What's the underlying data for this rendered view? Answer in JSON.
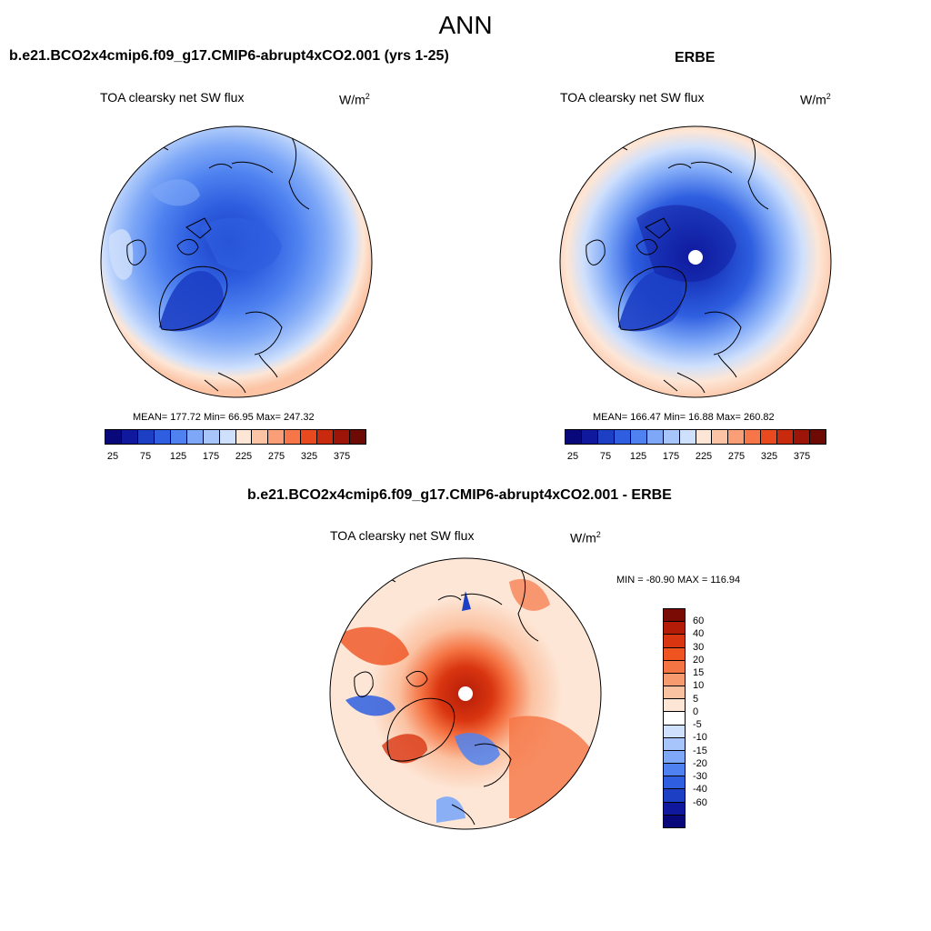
{
  "title": "ANN",
  "panels": [
    {
      "title": "b.e21.BCO2x4cmip6.f09_g17.CMIP6-abrupt4xCO2.001 (yrs 1-25)",
      "field": "TOA clearsky net SW flux",
      "units_base": "W/m",
      "units_exp": "2",
      "stats": "MEAN= 177.72  Min=  66.95  Max= 247.32"
    },
    {
      "title": "ERBE",
      "field": "TOA clearsky net SW flux",
      "units_base": "W/m",
      "units_exp": "2",
      "stats": "MEAN= 166.47  Min=  16.88  Max= 260.82"
    },
    {
      "title": "b.e21.BCO2x4cmip6.f09_g17.CMIP6-abrupt4xCO2.001 - ERBE",
      "field": "TOA clearsky net SW flux",
      "units_base": "W/m",
      "units_exp": "2",
      "stats": "MIN = -80.90 MAX = 116.94"
    }
  ],
  "colorbar_abs": {
    "labels": [
      "25",
      "75",
      "125",
      "175",
      "225",
      "275",
      "325",
      "375"
    ],
    "colors": [
      "#08087a",
      "#10199e",
      "#1c3fc4",
      "#2f5fe0",
      "#4f82f0",
      "#7ea8f7",
      "#a7c5fa",
      "#cfe0fc",
      "#fde6d6",
      "#fcc4a5",
      "#fa9e77",
      "#f67549",
      "#e8491f",
      "#c92a0e",
      "#9c1508",
      "#6e0a04"
    ]
  },
  "colorbar_diff": {
    "labels": [
      "60",
      "40",
      "30",
      "20",
      "15",
      "10",
      "5",
      "0",
      "-5",
      "-10",
      "-15",
      "-20",
      "-30",
      "-40",
      "-60"
    ],
    "colors": [
      "#7a0a04",
      "#b41c08",
      "#d93510",
      "#ef5320",
      "#f57444",
      "#f89a70",
      "#fbc2a2",
      "#fde6d6",
      "#ffffff",
      "#cfe0fc",
      "#a7c5fa",
      "#7ea8f7",
      "#4f82f0",
      "#2f5fe0",
      "#1c3fc4",
      "#10199e",
      "#08087a"
    ]
  }
}
